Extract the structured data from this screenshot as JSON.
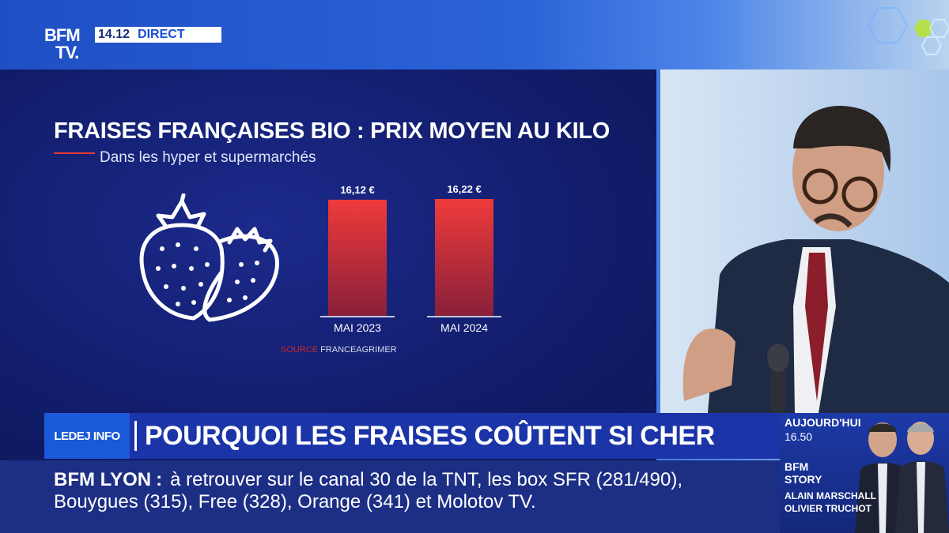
{
  "channel": {
    "logo_line1": "BFM",
    "logo_line2": "TV.",
    "time": "14.12",
    "live_label": "DIRECT"
  },
  "chart_data": {
    "type": "bar",
    "title": "FRAISES FRANÇAISES BIO : PRIX MOYEN AU KILO",
    "subtitle": "Dans les hyper et supermarchés",
    "categories": [
      "MAI 2023",
      "MAI 2024"
    ],
    "values": [
      16.12,
      16.22
    ],
    "value_labels": [
      "16,12 €",
      "16,22 €"
    ],
    "unit": "€",
    "ylim": [
      0,
      16.22
    ],
    "bar_color": "#e53935",
    "source_label": "SOURCE",
    "source": "FRANCEAGRIMER"
  },
  "banner": {
    "program_logo": "LEDEJ INFO",
    "headline": "POURQUOI LES FRAISES COÛTENT SI CHER"
  },
  "ticker": {
    "label": "BFM LYON",
    "line1": "à retrouver sur le canal 30 de la TNT, les box SFR (281/490),",
    "line2": "Bouygues (315), Free (328), Orange (341) et Molotov TV."
  },
  "side_panel": {
    "today": "AUJOURD'HUI",
    "time": "16.50",
    "show_line1": "BFM",
    "show_line2": "STORY",
    "host1": "ALAIN MARSCHALL",
    "host2": "OLIVIER TRUCHOT"
  },
  "colors": {
    "accent": "#e53935",
    "brand_blue": "#1a4ed8",
    "panel_navy": "#111d6b"
  }
}
